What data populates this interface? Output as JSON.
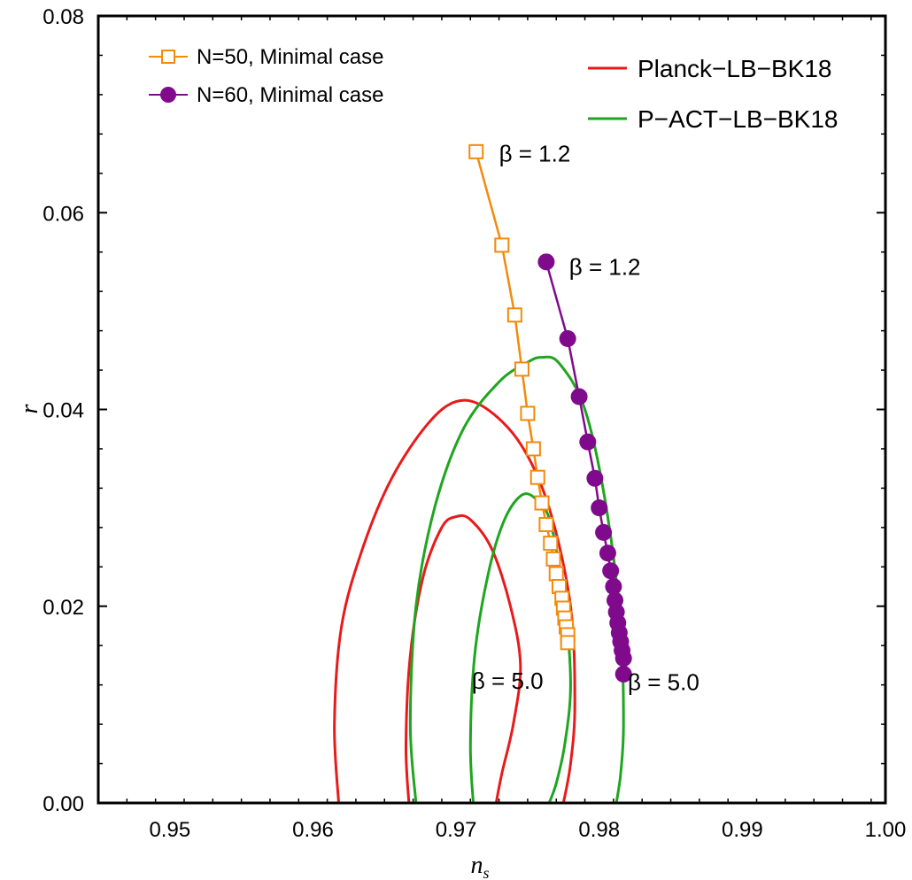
{
  "chart_data": {
    "type": "line",
    "xlabel": "n",
    "xlabel_sub": "s",
    "ylabel": "r",
    "xlim": [
      0.945,
      1.0
    ],
    "ylim": [
      0.0,
      0.08
    ],
    "xticks": [
      0.95,
      0.96,
      0.97,
      0.98,
      0.99,
      1.0
    ],
    "xtick_labels": [
      "0.95",
      "0.96",
      "0.97",
      "0.98",
      "0.99",
      "1.00"
    ],
    "yticks": [
      0.0,
      0.02,
      0.04,
      0.06,
      0.08
    ],
    "ytick_labels": [
      "0.00",
      "0.02",
      "0.04",
      "0.06",
      "0.08"
    ],
    "series": [
      {
        "name": "N=50, Minimal case",
        "color": "#f28a0c",
        "marker": "open-square",
        "x": [
          0.9714,
          0.9732,
          0.9741,
          0.9746,
          0.975,
          0.9754,
          0.9757,
          0.976,
          0.9763,
          0.9766,
          0.9768,
          0.977,
          0.9772,
          0.9774,
          0.9775,
          0.9776,
          0.9777,
          0.9778,
          0.9778
        ],
        "y": [
          0.0662,
          0.0567,
          0.0496,
          0.0441,
          0.0396,
          0.036,
          0.0331,
          0.0305,
          0.0283,
          0.0264,
          0.0248,
          0.0233,
          0.022,
          0.0208,
          0.0198,
          0.0188,
          0.0179,
          0.0171,
          0.0163
        ]
      },
      {
        "name": "N=60, Minimal case",
        "color": "#800a8c",
        "marker": "filled-circle",
        "x": [
          0.9763,
          0.9778,
          0.9786,
          0.9792,
          0.9797,
          0.98,
          0.9803,
          0.9806,
          0.9808,
          0.981,
          0.9811,
          0.9812,
          0.9813,
          0.9814,
          0.9815,
          0.9816,
          0.9817,
          0.9817
        ],
        "y": [
          0.055,
          0.0472,
          0.0413,
          0.0367,
          0.033,
          0.03,
          0.0275,
          0.0254,
          0.0236,
          0.022,
          0.0206,
          0.0194,
          0.0183,
          0.0173,
          0.0164,
          0.0155,
          0.0147,
          0.0131
        ]
      }
    ],
    "contours": [
      {
        "name": "Planck-LB-BK18",
        "color": "#e81a1a",
        "levels": [
          {
            "x": [
              0.9618,
              0.9615,
              0.962,
              0.9635,
              0.9655,
              0.968,
              0.97,
              0.972,
              0.9745,
              0.9765,
              0.978,
              0.9783,
              0.978,
              0.9775
            ],
            "y": [
              0.0,
              0.008,
              0.018,
              0.026,
              0.033,
              0.0385,
              0.0408,
              0.0402,
              0.0365,
              0.03,
              0.02,
              0.01,
              0.004,
              0.0
            ]
          },
          {
            "x": [
              0.9667,
              0.9665,
              0.9668,
              0.9677,
              0.969,
              0.97,
              0.971,
              0.9725,
              0.9738,
              0.9745,
              0.974,
              0.9732,
              0.9728
            ],
            "y": [
              0.0,
              0.006,
              0.015,
              0.023,
              0.028,
              0.0291,
              0.0288,
              0.0258,
              0.02,
              0.014,
              0.008,
              0.003,
              0.0
            ]
          }
        ]
      },
      {
        "name": "P-ACT-LB-BK18",
        "color": "#1fa51f",
        "levels": [
          {
            "x": [
              0.9672,
              0.9668,
              0.9672,
              0.9685,
              0.9705,
              0.973,
              0.975,
              0.976,
              0.9772,
              0.979,
              0.9805,
              0.9815,
              0.9817,
              0.9815,
              0.9812
            ],
            "y": [
              0.0,
              0.008,
              0.02,
              0.03,
              0.038,
              0.0428,
              0.0448,
              0.0453,
              0.0447,
              0.04,
              0.03,
              0.018,
              0.008,
              0.003,
              0.0
            ]
          },
          {
            "x": [
              0.9712,
              0.971,
              0.9713,
              0.9722,
              0.9733,
              0.9745,
              0.9755,
              0.9766,
              0.9776,
              0.978,
              0.9776,
              0.977,
              0.9765
            ],
            "y": [
              0.0,
              0.006,
              0.015,
              0.023,
              0.0285,
              0.0312,
              0.031,
              0.0285,
              0.02,
              0.012,
              0.006,
              0.002,
              0.0
            ]
          }
        ]
      }
    ],
    "legend": [
      {
        "label": "N=50, Minimal case",
        "position": "top-left"
      },
      {
        "label": "N=60, Minimal case",
        "position": "top-left"
      },
      {
        "label": "Planck−LB−BK18",
        "position": "top-right"
      },
      {
        "label": "P−ACT−LB−BK18",
        "position": "top-right"
      }
    ],
    "annotations": [
      {
        "text": "β = 1.2",
        "x": 0.973,
        "y": 0.066
      },
      {
        "text": "β = 1.2",
        "x": 0.9779,
        "y": 0.0545
      },
      {
        "text": "β = 5.0",
        "x": 0.9711,
        "y": 0.0124
      },
      {
        "text": "β = 5.0",
        "x": 0.982,
        "y": 0.0123
      }
    ]
  }
}
